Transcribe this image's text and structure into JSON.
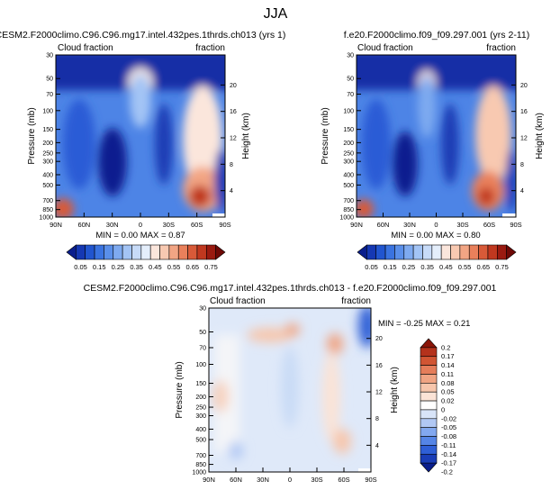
{
  "page_title": "JJA",
  "colorbar_common": {
    "colors": [
      "#0a1e8c",
      "#1538b3",
      "#2155cf",
      "#3a73e0",
      "#5a8fea",
      "#7eaaf0",
      "#a3c4f5",
      "#c7dbf8",
      "#e4eefb",
      "#fbe6dc",
      "#f8c9b1",
      "#f2a584",
      "#e9805b",
      "#d85a38",
      "#c0381f",
      "#9a1a10",
      "#6e0906"
    ],
    "labels": [
      "0.05",
      "0.15",
      "0.25",
      "0.35",
      "0.45",
      "0.55",
      "0.65",
      "0.75"
    ]
  },
  "colorbar_diff": {
    "colors": [
      "#0a1e8c",
      "#1a3db7",
      "#2f5fd6",
      "#5585e6",
      "#82a8ef",
      "#b1c8f4",
      "#d8e4f8",
      "#ffffff",
      "#fbe3d6",
      "#f7c6ac",
      "#f0a483",
      "#e57d5a",
      "#d15533",
      "#b4321c",
      "#8a1509"
    ],
    "labels": [
      "0.2",
      "0.17",
      "0.14",
      "0.11",
      "0.08",
      "0.05",
      "0.02",
      "0",
      "-0.02",
      "-0.05",
      "-0.08",
      "-0.11",
      "-0.14",
      "-0.17",
      "-0.2"
    ]
  },
  "chart_data": [
    {
      "type": "heatmap",
      "title": "CESM2.F2000climo.C96.C96.mg17.intel.432pes.1thrds.ch013 (yrs 1)",
      "left_string": "Cloud fraction",
      "right_string": "fraction",
      "ylabel": "Pressure (mb)",
      "ylabel_right": "Height (km)",
      "x_ticks": [
        "90N",
        "60N",
        "30N",
        "0",
        "30S",
        "60S",
        "90S"
      ],
      "y_ticks": [
        "30",
        "50",
        "70",
        "100",
        "150",
        "200",
        "250",
        "300",
        "400",
        "500",
        "700",
        "850",
        "1000"
      ],
      "y_ticks_right": [
        "20",
        "16",
        "12",
        "8",
        "4"
      ],
      "stats": "MIN =  0.00  MAX =  0.87",
      "min": 0.0,
      "max": 0.87
    },
    {
      "type": "heatmap",
      "title": "f.e20.F2000climo.f09_f09.297.001 (yrs 2-11)",
      "left_string": "Cloud fraction",
      "right_string": "fraction",
      "ylabel": "Pressure (mb)",
      "ylabel_right": "Height (km)",
      "x_ticks": [
        "90N",
        "60N",
        "30N",
        "0",
        "30S",
        "60S",
        "90S"
      ],
      "y_ticks": [
        "30",
        "50",
        "70",
        "100",
        "150",
        "200",
        "250",
        "300",
        "400",
        "500",
        "700",
        "850",
        "1000"
      ],
      "y_ticks_right": [
        "20",
        "16",
        "12",
        "8",
        "4"
      ],
      "stats": "MIN =  0.00  MAX =  0.80",
      "min": 0.0,
      "max": 0.8
    },
    {
      "type": "heatmap",
      "title": "CESM2.F2000climo.C96.C96.mg17.intel.432pes.1thrds.ch013 - f.e20.F2000climo.f09_f09.297.001",
      "left_string": "Cloud fraction",
      "right_string": "fraction",
      "ylabel": "Pressure (mb)",
      "ylabel_right": "Height (km)",
      "x_ticks": [
        "90N",
        "60N",
        "30N",
        "0",
        "30S",
        "60S",
        "90S"
      ],
      "y_ticks": [
        "30",
        "50",
        "70",
        "100",
        "150",
        "200",
        "250",
        "300",
        "400",
        "500",
        "700",
        "850",
        "1000"
      ],
      "y_ticks_right": [
        "20",
        "16",
        "12",
        "8",
        "4"
      ],
      "stats": "MIN = -0.25  MAX =  0.21",
      "min": -0.25,
      "max": 0.21
    }
  ]
}
